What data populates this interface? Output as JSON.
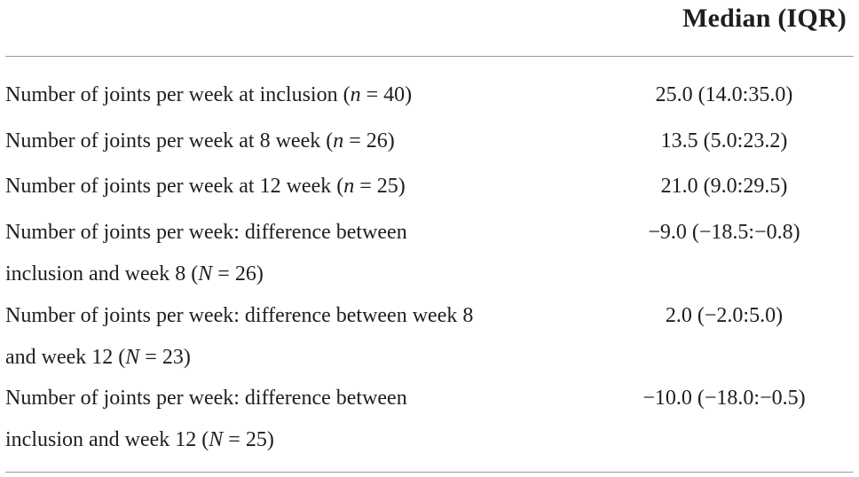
{
  "header": {
    "column_title": "Median (IQR)"
  },
  "rows": [
    {
      "line1_pre": "Number of joints per week at inclusion (",
      "line1_var": "n",
      "line1_post": " = 40)",
      "value": "25.0 (14.0:35.0)"
    },
    {
      "line1_pre": "Number of joints per week at 8 week (",
      "line1_var": "n",
      "line1_post": " = 26)",
      "value": "13.5 (5.0:23.2)"
    },
    {
      "line1_pre": "Number of joints per week at 12 week (",
      "line1_var": "n",
      "line1_post": " = 25)",
      "value": "21.0 (9.0:29.5)"
    },
    {
      "line1": "Number of joints per week: difference between",
      "line2_pre": "inclusion and week 8 (",
      "line2_var": "N",
      "line2_post": " = 26)",
      "value": "−9.0 (−18.5:−0.8)"
    },
    {
      "line1": "Number of joints per week: difference between week 8",
      "line2_pre": "and week 12 (",
      "line2_var": "N",
      "line2_post": " = 23)",
      "value": "2.0 (−2.0:5.0)"
    },
    {
      "line1": "Number of joints per week: difference between",
      "line2_pre": "inclusion and week 12 (",
      "line2_var": "N",
      "line2_post": " = 25)",
      "value": "−10.0 (−18.0:−0.5)"
    }
  ]
}
